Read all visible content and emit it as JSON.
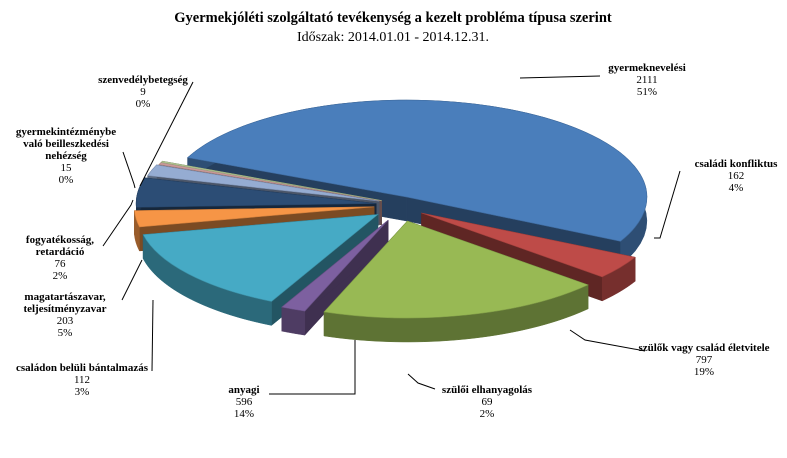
{
  "chart_data": {
    "type": "pie",
    "title": "Gyermekjóléti szolgáltató tevékenység a kezelt probléma típusa szerint",
    "subtitle": "Időszak: 2014.01.01 - 2014.12.31.",
    "slices": [
      {
        "label": "gyermeknevelési",
        "value": 2111,
        "percent": "51%",
        "color": "#4a7ebb"
      },
      {
        "label": "családi konfliktus",
        "value": 162,
        "percent": "4%",
        "color": "#be4b48"
      },
      {
        "label": "szülők vagy család életvitele",
        "value": 797,
        "percent": "19%",
        "color": "#98b954"
      },
      {
        "label": "szülői elhanyagolás",
        "value": 69,
        "percent": "2%",
        "color": "#7d60a0"
      },
      {
        "label": "anyagi",
        "value": 596,
        "percent": "14%",
        "color": "#46aac5"
      },
      {
        "label": "családon belüli bántalmazás",
        "value": 112,
        "percent": "3%",
        "color": "#f69546"
      },
      {
        "label": "magatartászavar, teljesítményzavar",
        "value": 203,
        "percent": "5%",
        "color": "#2c4d75"
      },
      {
        "label": "fogyatékosság, retardáció",
        "value": 76,
        "percent": "2%",
        "color": "#95acd2"
      },
      {
        "label": "gyermekintézménybe való beilleszkedési nehézség",
        "value": 15,
        "percent": "0%",
        "color": "#c99a99"
      },
      {
        "label": "szenvedélybetegség",
        "value": 9,
        "percent": "0%",
        "color": "#b4c994"
      }
    ]
  }
}
